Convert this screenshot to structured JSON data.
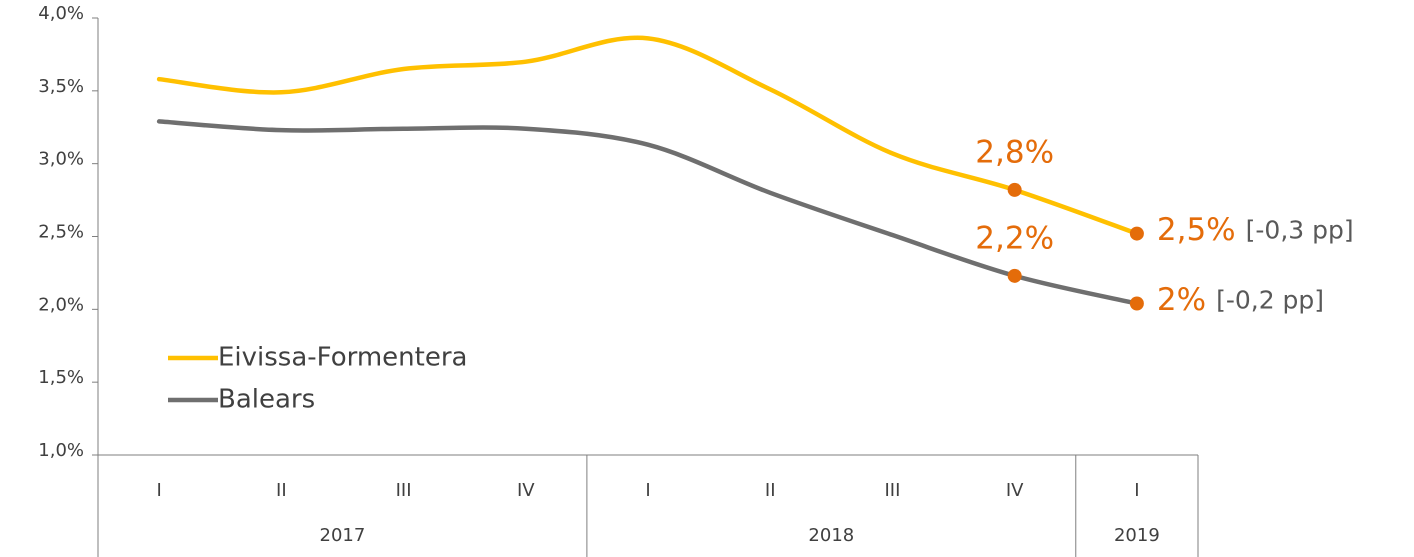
{
  "chart_data": {
    "type": "line",
    "categories": [
      "I",
      "II",
      "III",
      "IV",
      "I",
      "II",
      "III",
      "IV",
      "I"
    ],
    "x_groups": [
      {
        "label": "2017",
        "count": 4
      },
      {
        "label": "2018",
        "count": 4
      },
      {
        "label": "2019",
        "count": 1
      }
    ],
    "series": [
      {
        "name": "Eivissa-Formentera",
        "color": "#FFC000",
        "values": [
          3.58,
          3.49,
          3.65,
          3.7,
          3.86,
          3.51,
          3.07,
          2.82,
          2.52
        ],
        "value_labels": [
          null,
          null,
          null,
          null,
          null,
          null,
          null,
          "2,8%",
          "2,5%"
        ],
        "value_notes": [
          null,
          null,
          null,
          null,
          null,
          null,
          null,
          null,
          "[-0,3 pp]"
        ]
      },
      {
        "name": "Balears",
        "color": "#6F6F6F",
        "values": [
          3.29,
          3.23,
          3.24,
          3.24,
          3.13,
          2.8,
          2.51,
          2.23,
          2.04
        ],
        "value_labels": [
          null,
          null,
          null,
          null,
          null,
          null,
          null,
          "2,2%",
          "2%"
        ],
        "value_notes": [
          null,
          null,
          null,
          null,
          null,
          null,
          null,
          null,
          "[-0,2 pp]"
        ]
      }
    ],
    "label_color": "#E46C0A",
    "ylim": [
      1.0,
      4.0
    ],
    "yticks": [
      {
        "value": 1.0,
        "label": "1,0%"
      },
      {
        "value": 1.5,
        "label": "1,5%"
      },
      {
        "value": 2.0,
        "label": "2,0%"
      },
      {
        "value": 2.5,
        "label": "2,5%"
      },
      {
        "value": 3.0,
        "label": "3,0%"
      },
      {
        "value": 3.5,
        "label": "3,5%"
      },
      {
        "value": 4.0,
        "label": "4,0%"
      }
    ],
    "grid": false,
    "legend": "lower left"
  }
}
